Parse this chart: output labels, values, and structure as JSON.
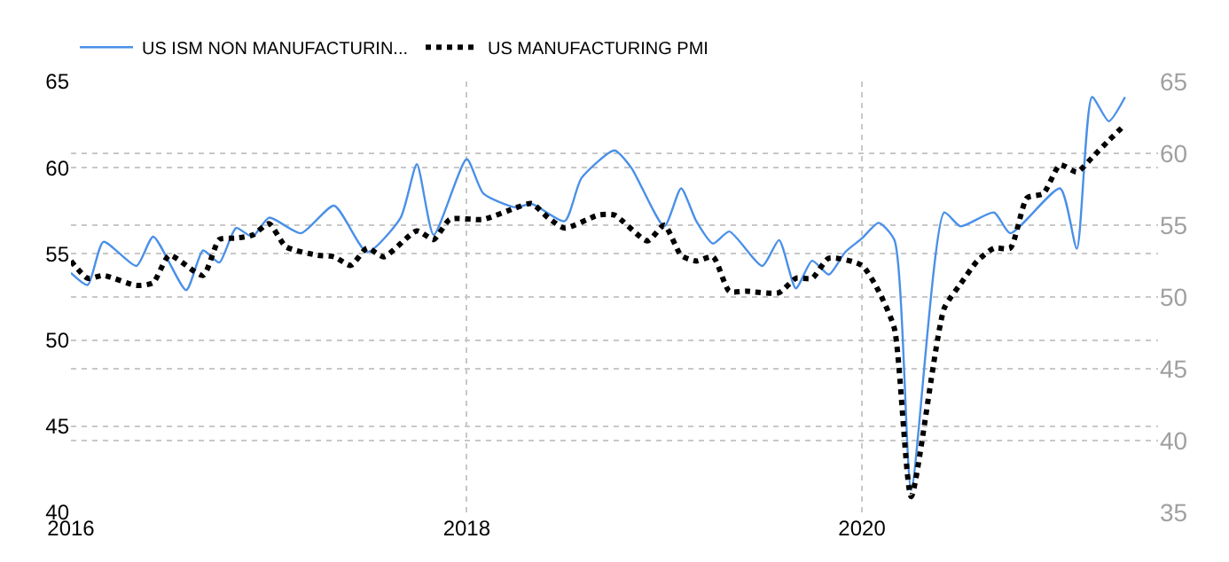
{
  "chart_data": {
    "type": "line",
    "xlim": [
      "2016-01-01",
      "2021-07-01"
    ],
    "xticks": [
      {
        "value": "2016-01-01",
        "label": "2016"
      },
      {
        "value": "2018-01-01",
        "label": "2018"
      },
      {
        "value": "2020-01-01",
        "label": "2020"
      }
    ],
    "ylim": [
      40,
      65
    ],
    "yticks": [
      40,
      45,
      50,
      55,
      60,
      65
    ],
    "y2lim": [
      35,
      65
    ],
    "y2ticks": [
      35,
      40,
      45,
      50,
      55,
      60,
      65
    ],
    "grid": true,
    "legend": "top left",
    "marker": "none",
    "series": [
      {
        "name": "US ISM NON MANUFACTURIN...",
        "color": "#4a90e8",
        "line_style": "solid",
        "x": [
          "2016-01",
          "2016-02",
          "2016-03",
          "2016-05",
          "2016-06",
          "2016-08",
          "2016-09",
          "2016-10",
          "2016-11",
          "2016-12",
          "2017-01",
          "2017-03",
          "2017-05",
          "2017-07",
          "2017-09",
          "2017-10",
          "2017-11",
          "2018-01",
          "2018-02",
          "2018-04",
          "2018-05",
          "2018-07",
          "2018-08",
          "2018-10",
          "2018-11",
          "2019-01",
          "2019-02",
          "2019-03",
          "2019-04",
          "2019-05",
          "2019-07",
          "2019-08",
          "2019-09",
          "2019-10",
          "2019-11",
          "2019-12",
          "2020-01",
          "2020-02",
          "2020-03",
          "2020-04",
          "2020-06",
          "2020-07",
          "2020-09",
          "2020-10",
          "2021-01",
          "2021-02",
          "2021-03",
          "2021-04",
          "2021-05"
        ],
        "values": [
          53.9,
          53.2,
          55.7,
          54.3,
          56.0,
          52.9,
          55.2,
          54.5,
          56.5,
          56.0,
          57.1,
          56.2,
          57.8,
          55.1,
          57.1,
          60.2,
          56.1,
          60.5,
          58.5,
          57.7,
          57.9,
          56.9,
          59.4,
          61.0,
          60.0,
          56.6,
          58.8,
          56.9,
          55.6,
          56.3,
          54.3,
          55.8,
          53.0,
          54.6,
          53.8,
          55.1,
          55.9,
          56.8,
          55.8,
          41.3,
          57.4,
          56.6,
          57.4,
          56.2,
          58.8,
          55.3,
          64.1,
          62.7,
          64.1
        ]
      },
      {
        "name": "US MANUFACTURING PMI",
        "color": "#000000",
        "line_style": "dotted",
        "axis": "y2",
        "x": [
          "2016-01",
          "2016-02",
          "2016-03",
          "2016-05",
          "2016-06",
          "2016-07",
          "2016-09",
          "2016-10",
          "2016-11",
          "2016-12",
          "2017-01",
          "2017-02",
          "2017-04",
          "2017-05",
          "2017-06",
          "2017-07",
          "2017-08",
          "2017-10",
          "2017-11",
          "2017-12",
          "2018-02",
          "2018-04",
          "2018-05",
          "2018-06",
          "2018-07",
          "2018-09",
          "2018-10",
          "2018-12",
          "2019-01",
          "2019-02",
          "2019-03",
          "2019-04",
          "2019-05",
          "2019-06",
          "2019-08",
          "2019-09",
          "2019-10",
          "2019-11",
          "2020-01",
          "2020-02",
          "2020-03",
          "2020-04",
          "2020-06",
          "2020-07",
          "2020-08",
          "2020-09",
          "2020-10",
          "2020-11",
          "2020-12",
          "2021-01",
          "2021-02",
          "2021-03",
          "2021-04",
          "2021-05"
        ],
        "values": [
          52.5,
          51.3,
          51.5,
          50.8,
          51.0,
          52.9,
          51.5,
          54.0,
          54.1,
          54.3,
          55.1,
          53.5,
          52.9,
          52.8,
          52.2,
          53.4,
          52.8,
          54.6,
          54.0,
          55.4,
          55.4,
          56.2,
          56.5,
          55.5,
          54.8,
          55.7,
          55.7,
          53.9,
          55.0,
          52.9,
          52.5,
          52.8,
          50.4,
          50.4,
          50.3,
          51.3,
          51.3,
          52.7,
          52.2,
          50.4,
          47.8,
          36.1,
          49.2,
          50.9,
          52.5,
          53.4,
          53.4,
          56.9,
          57.2,
          59.2,
          58.7,
          59.7,
          60.9,
          62.0
        ]
      }
    ]
  }
}
